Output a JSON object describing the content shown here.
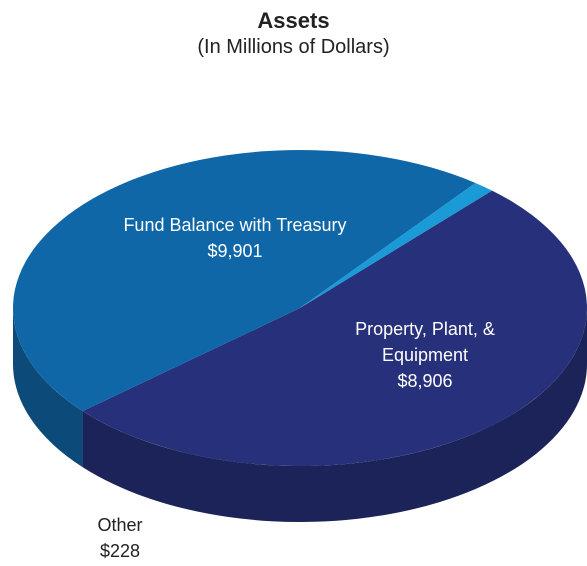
{
  "chart_data": {
    "type": "pie",
    "title": "Assets",
    "subtitle": "(In Millions of Dollars)",
    "categories": [
      "Fund Balance with Treasury",
      "Property, Plant, & Equipment",
      "Other"
    ],
    "values": [
      9901,
      8906,
      228
    ],
    "value_labels": [
      "$9,901",
      "$8,906",
      "$228"
    ],
    "colors": [
      "#27307a",
      "#0f67a8",
      "#1a9ad6"
    ]
  }
}
